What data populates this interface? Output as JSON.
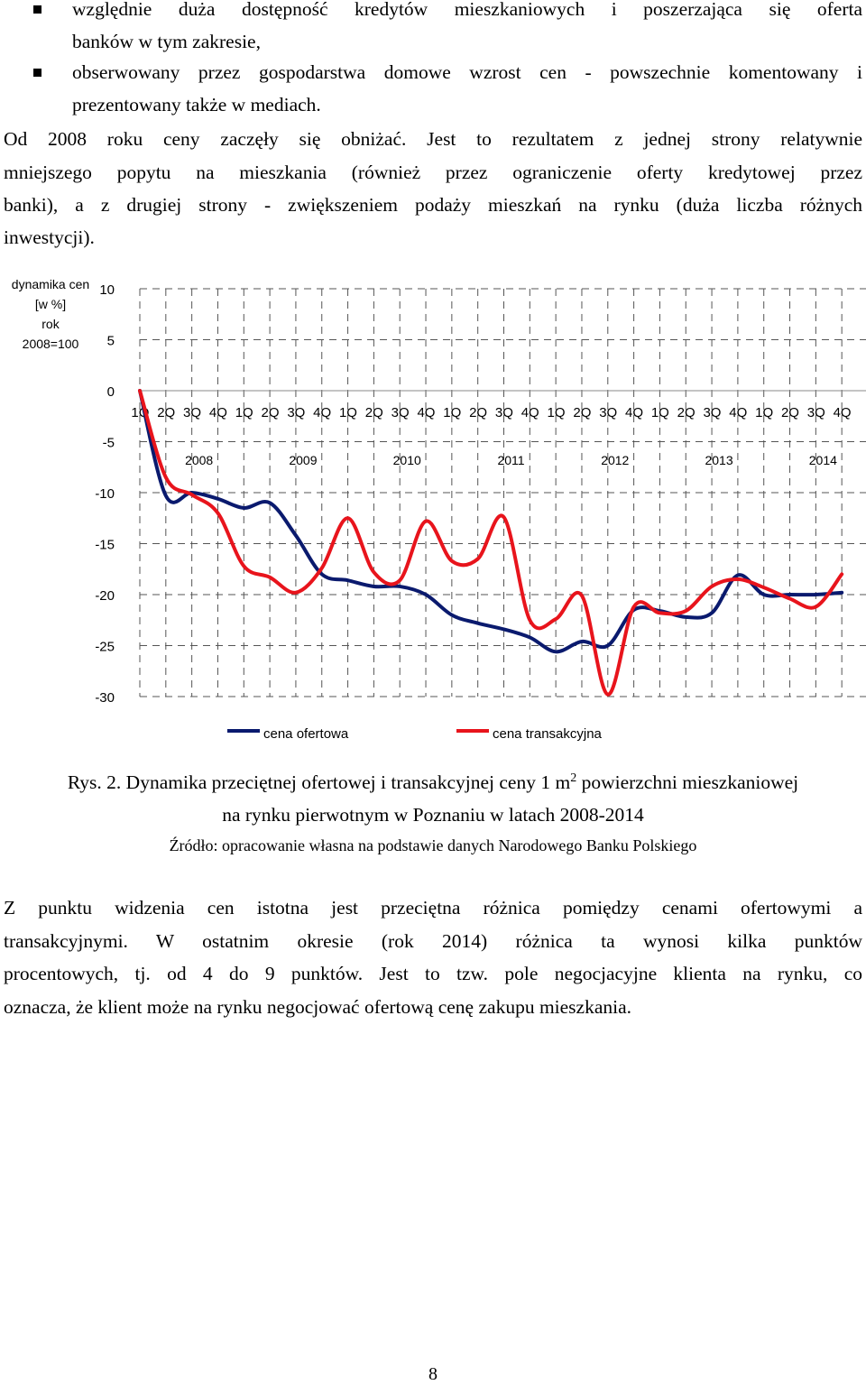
{
  "intro": {
    "bullet_1": {
      "line_1": "względnie duża dostępność kredytów mieszkaniowych i poszerzająca się oferta",
      "line_2": "banków w tym zakresie,"
    },
    "bullet_2": {
      "line_1": "obserwowany przez gospodarstwa domowe wzrost cen - powszechnie komentowany i",
      "line_2": "prezentowany także w mediach."
    },
    "paragraph": [
      "Od 2008 roku ceny zaczęły się obniżać. Jest to rezultatem z jednej strony relatywnie",
      "mniejszego popytu na mieszkania (również przez ograniczenie oferty kredytowej przez",
      "banki), a z drugiej strony - zwiększeniem podaży mieszkań na rynku (duża liczba różnych",
      "inwestycji)."
    ]
  },
  "chart_data": {
    "type": "line",
    "ylabel": [
      "dynamika cen",
      "[w %]",
      "rok",
      "2008=100"
    ],
    "ylim": [
      -30,
      10
    ],
    "yticks": [
      10,
      5,
      0,
      -5,
      -10,
      -15,
      -20,
      -25,
      -30
    ],
    "categories": [
      "1Q",
      "2Q",
      "3Q",
      "4Q",
      "1Q",
      "2Q",
      "3Q",
      "4Q",
      "1Q",
      "2Q",
      "3Q",
      "4Q",
      "1Q",
      "2Q",
      "3Q",
      "4Q",
      "1Q",
      "2Q",
      "3Q",
      "4Q",
      "1Q",
      "2Q",
      "3Q",
      "4Q",
      "1Q",
      "2Q",
      "3Q",
      "4Q"
    ],
    "years": [
      "2008",
      "2009",
      "2010",
      "2011",
      "2012",
      "2013",
      "2014"
    ],
    "grid": true,
    "legend_position": "bottom",
    "series": [
      {
        "name": "cena ofertowa",
        "color": "#0a1a6e",
        "values": [
          0,
          -10.3,
          -10.0,
          -10.6,
          -11.5,
          -11.0,
          -14.2,
          -18.0,
          -18.6,
          -19.2,
          -19.2,
          -20.0,
          -22.0,
          -22.8,
          -23.4,
          -24.2,
          -25.6,
          -24.6,
          -25.0,
          -21.5,
          -21.6,
          -22.2,
          -21.8,
          -18.1,
          -20.0,
          -20.0,
          -20.0,
          -19.8
        ]
      },
      {
        "name": "cena transakcyjna",
        "color": "#e8141c",
        "values": [
          0,
          -8.5,
          -10.2,
          -12.0,
          -17.2,
          -18.3,
          -19.8,
          -17.4,
          -12.5,
          -17.8,
          -18.6,
          -12.8,
          -16.7,
          -16.5,
          -12.4,
          -22.5,
          -22.4,
          -20.1,
          -29.8,
          -21.2,
          -21.8,
          -21.6,
          -19.2,
          -18.5,
          -19.3,
          -20.4,
          -21.2,
          -18.0
        ]
      }
    ]
  },
  "figure_caption": {
    "line_1_prefix": "Rys. 2. Dynamika przeciętnej ofertowej i transakcyjnej ceny 1 m",
    "line_1_superscript": "2",
    "line_1_suffix": " powierzchni mieszkaniowej",
    "line_2": "na rynku pierwotnym w Poznaniu w latach 2008-2014",
    "source": "Źródło: opracowanie własna na podstawie danych Narodowego Banku Polskiego"
  },
  "conclusion": [
    "Z punktu widzenia cen istotna jest przeciętna różnica pomiędzy cenami ofertowymi a",
    "transakcyjnymi. W ostatnim okresie (rok 2014) różnica ta wynosi kilka punktów",
    "procentowych, tj. od 4 do 9 punktów. Jest to tzw. pole negocjacyjne klienta na rynku, co",
    "oznacza, że klient może na rynku negocjować ofertową cenę zakupu mieszkania."
  ],
  "page_number": "8"
}
